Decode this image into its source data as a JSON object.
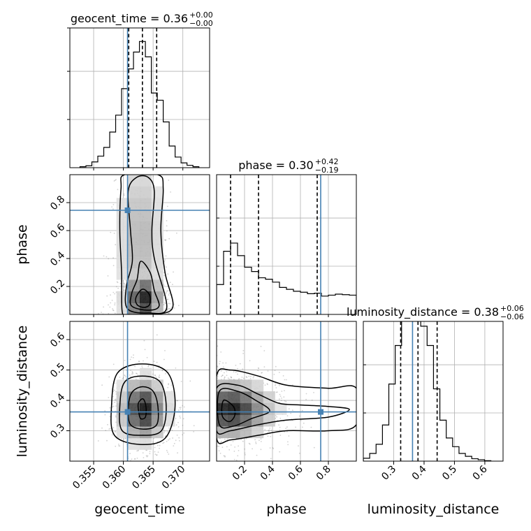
{
  "chart_data": {
    "type": "corner",
    "truth_color": "#4682b4",
    "parameters": [
      {
        "name": "geocent_time",
        "axis_label": "geocent_time",
        "title_main": "geocent_time = 0.36",
        "title_sup": "+0.00",
        "title_sub": "−0.00",
        "range": [
          0.351,
          0.3745
        ],
        "ticks": [
          0.355,
          0.36,
          0.365,
          0.37
        ],
        "tick_labels": [
          "0.355",
          "0.360",
          "0.365",
          "0.370"
        ],
        "truth": 0.3607,
        "quantiles": [
          0.3609,
          0.3632,
          0.3656
        ],
        "hist_edges": [
          0.3527,
          0.3537,
          0.3547,
          0.3557,
          0.3567,
          0.3577,
          0.3587,
          0.3597,
          0.3607,
          0.3617,
          0.3627,
          0.3637,
          0.3647,
          0.3657,
          0.3667,
          0.3677,
          0.3687,
          0.3697,
          0.3707,
          0.3717,
          0.3727
        ],
        "hist_counts": [
          2,
          4,
          12,
          24,
          42,
          74,
          109,
          164,
          205,
          240,
          262,
          230,
          155,
          140,
          95,
          45,
          22,
          10,
          5,
          2
        ]
      },
      {
        "name": "phase",
        "axis_label": "phase",
        "title_main": "phase = 0.30",
        "title_sup": "+0.42",
        "title_sub": "−0.19",
        "range": [
          0.0,
          1.0
        ],
        "ticks": [
          0.2,
          0.4,
          0.6,
          0.8
        ],
        "tick_labels": [
          "0.2",
          "0.4",
          "0.6",
          "0.8"
        ],
        "truth": 0.745,
        "quantiles": [
          0.1,
          0.3,
          0.72
        ],
        "hist_edges": [
          0.0,
          0.05,
          0.1,
          0.15,
          0.2,
          0.25,
          0.3,
          0.35,
          0.4,
          0.45,
          0.5,
          0.55,
          0.6,
          0.65,
          0.7,
          0.75,
          0.8,
          0.85,
          0.9,
          0.95,
          1.0
        ],
        "hist_counts": [
          62,
          131,
          148,
          122,
          98,
          89,
          76,
          73,
          67,
          56,
          52,
          48,
          46,
          43,
          44,
          38,
          40,
          42,
          41,
          40
        ]
      },
      {
        "name": "luminosity_distance",
        "axis_label": "luminosity_distance",
        "title_main": "luminosity_distance = 0.38",
        "title_sup": "+0.06",
        "title_sub": "−0.06",
        "range": [
          0.2,
          0.66
        ],
        "ticks": [
          0.3,
          0.4,
          0.5,
          0.6
        ],
        "tick_labels": [
          "0.3",
          "0.4",
          "0.5",
          "0.6"
        ],
        "truth": 0.362,
        "quantiles": [
          0.323,
          0.38,
          0.443
        ],
        "hist_edges": [
          0.2,
          0.221,
          0.242,
          0.263,
          0.284,
          0.305,
          0.326,
          0.347,
          0.368,
          0.389,
          0.41,
          0.431,
          0.452,
          0.473,
          0.494,
          0.515,
          0.536,
          0.557,
          0.578,
          0.599,
          0.62
        ],
        "hist_counts": [
          6,
          16,
          35,
          75,
          160,
          240,
          320,
          350,
          300,
          280,
          240,
          150,
          85,
          48,
          30,
          16,
          10,
          5,
          3,
          1
        ]
      }
    ],
    "hist_ylim": [
      0,
      290
    ],
    "panels_2d": [
      {
        "x_param": "geocent_time",
        "y_param": "phase",
        "density_peak": [
          0.3633,
          0.11
        ],
        "spread": [
          0.0017,
          0.1
        ],
        "tail": [
          0.3628,
          0.55,
          0.0022,
          0.35
        ],
        "contours": [
          [
            [
              0.3598,
              0.02
            ],
            [
              0.3597,
              0.3
            ],
            [
              0.3594,
              0.6
            ],
            [
              0.3596,
              0.9
            ],
            [
              0.3602,
              1.0
            ],
            [
              0.3658,
              1.0
            ],
            [
              0.3667,
              0.9
            ],
            [
              0.3663,
              0.6
            ],
            [
              0.367,
              0.3
            ],
            [
              0.3683,
              0.05
            ],
            [
              0.3648,
              0.0
            ],
            [
              0.3608,
              0.0
            ]
          ],
          [
            [
              0.3607,
              0.04
            ],
            [
              0.3605,
              0.2
            ],
            [
              0.3615,
              0.38
            ],
            [
              0.3612,
              0.6
            ],
            [
              0.3608,
              0.88
            ],
            [
              0.3622,
              0.98
            ],
            [
              0.3642,
              0.98
            ],
            [
              0.3652,
              0.88
            ],
            [
              0.3648,
              0.6
            ],
            [
              0.3652,
              0.4
            ],
            [
              0.3673,
              0.05
            ],
            [
              0.3642,
              0.01
            ]
          ],
          [
            [
              0.3614,
              0.06
            ],
            [
              0.3614,
              0.15
            ],
            [
              0.3623,
              0.25
            ],
            [
              0.3629,
              0.38
            ],
            [
              0.3645,
              0.3
            ],
            [
              0.3652,
              0.17
            ],
            [
              0.366,
              0.06
            ],
            [
              0.3642,
              0.03
            ]
          ],
          [
            [
              0.3623,
              0.07
            ],
            [
              0.3621,
              0.12
            ],
            [
              0.3632,
              0.18
            ],
            [
              0.3644,
              0.14
            ],
            [
              0.3644,
              0.07
            ],
            [
              0.3634,
              0.05
            ]
          ]
        ]
      },
      {
        "x_param": "geocent_time",
        "y_param": "luminosity_distance",
        "density_peak": [
          0.3633,
          0.37
        ],
        "spread": [
          0.0021,
          0.055
        ],
        "contours": [
          [
            [
              0.358,
              0.38
            ],
            [
              0.3585,
              0.285
            ],
            [
              0.3627,
              0.255
            ],
            [
              0.367,
              0.275
            ],
            [
              0.3687,
              0.38
            ],
            [
              0.3675,
              0.49
            ],
            [
              0.3632,
              0.52
            ],
            [
              0.359,
              0.49
            ]
          ],
          [
            [
              0.3594,
              0.38
            ],
            [
              0.3598,
              0.3
            ],
            [
              0.3632,
              0.285
            ],
            [
              0.3664,
              0.3
            ],
            [
              0.3672,
              0.38
            ],
            [
              0.3662,
              0.46
            ],
            [
              0.3632,
              0.48
            ],
            [
              0.3602,
              0.46
            ]
          ],
          [
            [
              0.3608,
              0.37
            ],
            [
              0.3612,
              0.32
            ],
            [
              0.3634,
              0.305
            ],
            [
              0.3656,
              0.32
            ],
            [
              0.3658,
              0.38
            ],
            [
              0.365,
              0.43
            ],
            [
              0.3632,
              0.445
            ],
            [
              0.3614,
              0.425
            ]
          ],
          [
            [
              0.3626,
              0.36
            ],
            [
              0.3629,
              0.34
            ],
            [
              0.3637,
              0.345
            ],
            [
              0.3638,
              0.38
            ],
            [
              0.3633,
              0.405
            ],
            [
              0.3625,
              0.39
            ]
          ]
        ]
      },
      {
        "x_param": "phase",
        "y_param": "luminosity_distance",
        "density_peak": [
          0.1,
          0.37
        ],
        "spread": [
          0.16,
          0.05
        ],
        "contours": [
          [
            [
              0.0,
              0.48
            ],
            [
              0.1,
              0.5
            ],
            [
              0.3,
              0.48
            ],
            [
              0.5,
              0.45
            ],
            [
              0.8,
              0.44
            ],
            [
              1.0,
              0.44
            ],
            [
              1.0,
              0.32
            ],
            [
              0.8,
              0.3
            ],
            [
              0.5,
              0.3
            ],
            [
              0.3,
              0.285
            ],
            [
              0.1,
              0.27
            ],
            [
              0.0,
              0.275
            ]
          ],
          [
            [
              0.0,
              0.44
            ],
            [
              0.15,
              0.45
            ],
            [
              0.3,
              0.42
            ],
            [
              0.45,
              0.39
            ],
            [
              0.6,
              0.385
            ],
            [
              0.8,
              0.38
            ],
            [
              0.95,
              0.37
            ],
            [
              0.8,
              0.345
            ],
            [
              0.5,
              0.335
            ],
            [
              0.3,
              0.32
            ],
            [
              0.1,
              0.3
            ],
            [
              0.0,
              0.3
            ]
          ],
          [
            [
              0.02,
              0.43
            ],
            [
              0.15,
              0.43
            ],
            [
              0.28,
              0.4
            ],
            [
              0.38,
              0.365
            ],
            [
              0.25,
              0.34
            ],
            [
              0.12,
              0.315
            ],
            [
              0.02,
              0.32
            ]
          ],
          [
            [
              0.05,
              0.4
            ],
            [
              0.12,
              0.38
            ],
            [
              0.13,
              0.35
            ],
            [
              0.09,
              0.33
            ],
            [
              0.04,
              0.35
            ]
          ]
        ]
      }
    ]
  }
}
